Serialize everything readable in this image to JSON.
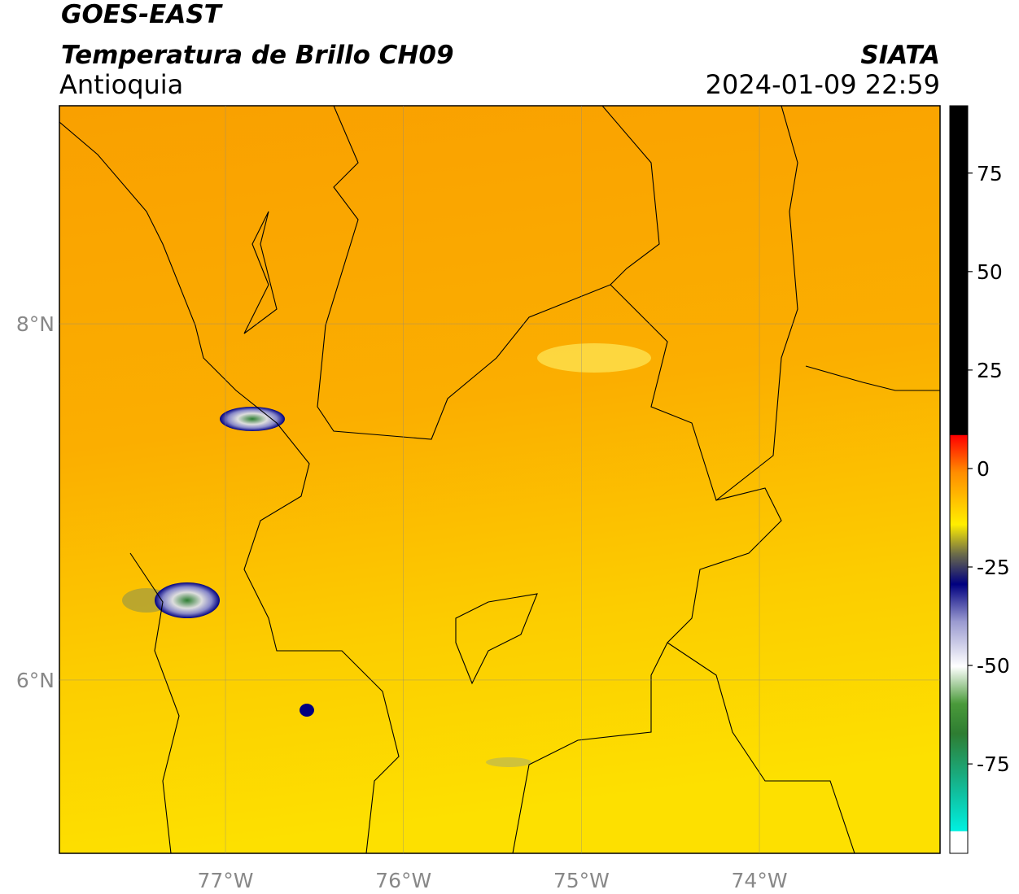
{
  "chart_data": {
    "type": "map",
    "title": "GOES-EAST",
    "subtitle": "Temperatura de Brillo CH09",
    "region": "Antioquia",
    "source": "SIATA",
    "datetime": "2024-01-09 22:59",
    "xlim": [
      -77.933,
      -72.985
    ],
    "ylim": [
      5.027,
      9.224
    ],
    "xticks": [
      {
        "value": -77,
        "label": "77°W"
      },
      {
        "value": -76,
        "label": "76°W"
      },
      {
        "value": -75,
        "label": "75°W"
      },
      {
        "value": -74,
        "label": "74°W"
      }
    ],
    "yticks": [
      {
        "value": 8,
        "label": "8°N"
      },
      {
        "value": 6,
        "label": "6°N"
      }
    ],
    "grid": true,
    "colorbar": {
      "lim": [
        -97.7,
        92.1
      ],
      "ticks": [
        75,
        50,
        25,
        0,
        -25,
        -50,
        -75
      ]
    }
  }
}
